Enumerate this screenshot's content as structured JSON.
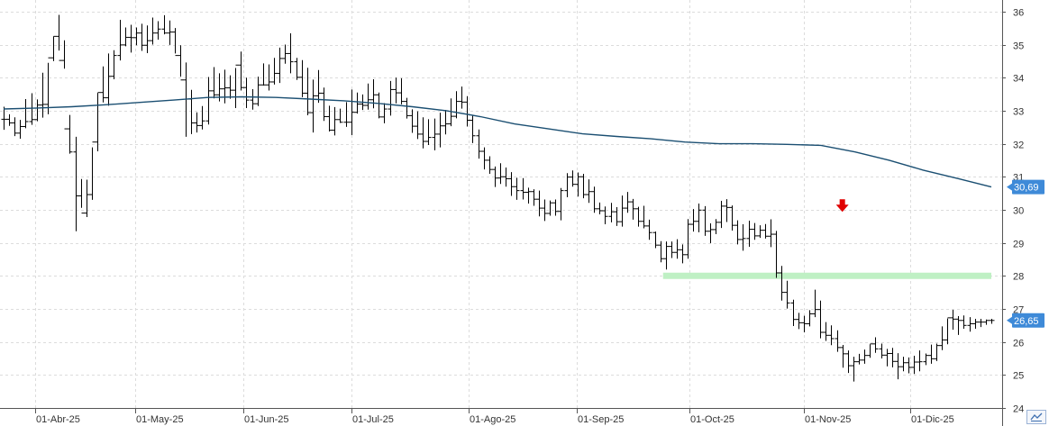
{
  "chart_data": {
    "type": "ohlc",
    "yaxis": {
      "ticks": [
        "24",
        "25",
        "26",
        "27",
        "28",
        "29",
        "30",
        "31",
        "32",
        "33",
        "34",
        "35",
        "36"
      ],
      "range": [
        24,
        36.35
      ],
      "side": "right"
    },
    "xaxis": {
      "labels": [
        "01-Abr-25",
        "01-May-25",
        "01-Jun-25",
        "01-Jul-25",
        "01-Ago-25",
        "01-Sep-25",
        "01-Oct-25",
        "01-Nov-25",
        "01-Dic-25"
      ]
    },
    "grid": true,
    "price_badge": {
      "value": "26,65",
      "level": 26.65,
      "color": "#3e8ad8"
    },
    "ma_badge": {
      "value": "30,69",
      "level": 30.69,
      "color": "#3e8ad8"
    },
    "ma_series": {
      "color": "#1b4f72",
      "values": [
        33.05,
        33.08,
        33.12,
        33.18,
        33.25,
        33.32,
        33.4,
        33.42,
        33.4,
        33.35,
        33.3,
        33.22,
        33.12,
        33.0,
        32.82,
        32.6,
        32.45,
        32.3,
        32.22,
        32.15,
        32.05,
        32.0,
        32.0,
        31.98,
        31.95,
        31.75,
        31.5,
        31.2,
        30.95,
        30.69
      ]
    },
    "support_line": {
      "level": 28.0,
      "color": "#bff0c4",
      "from_bar": 120,
      "to_bar": 179
    },
    "signal_arrow": {
      "direction": "down",
      "color": "#e00000",
      "level": 30.1,
      "bar": 152
    },
    "bar_count": 180,
    "ohlc": {
      "open": [
        32.74,
        32.74,
        32.63,
        32.32,
        32.52,
        32.67,
        32.73,
        33.17,
        33.19,
        34.6,
        35.25,
        34.52,
        32.45,
        31.75,
        30.42,
        29.9,
        30.46,
        32.05,
        33.55,
        33.39,
        34.04,
        34.67,
        34.99,
        35.22,
        35.21,
        35.35,
        34.98,
        35.12,
        35.35,
        35.47,
        35.35,
        35.38,
        34.67,
        33.93,
        33.35,
        32.63,
        32.55,
        32.69,
        33.6,
        33.48,
        33.66,
        33.69,
        33.62,
        34.38,
        33.7,
        33.32,
        33.21,
        33.78,
        33.78,
        33.87,
        34.13,
        34.58,
        34.73,
        34.48,
        34.01,
        33.53,
        32.94,
        33.45,
        33.53,
        32.82,
        32.41,
        32.73,
        32.65,
        32.65,
        32.95,
        33.2,
        33.16,
        33.33,
        33.48,
        32.81,
        33.05,
        33.64,
        33.54,
        33.28,
        32.85,
        32.53,
        32.29,
        32.07,
        32.19,
        32.29,
        32.54,
        32.6,
        32.83,
        33.28,
        33.26,
        32.71,
        32.24,
        31.77,
        31.5,
        31.22,
        30.96,
        31.0,
        30.94,
        30.7,
        30.58,
        30.53,
        30.55,
        30.32,
        30.05,
        29.89,
        30.21,
        29.95,
        30.58,
        30.99,
        30.77,
        31.0,
        30.46,
        30.55,
        30.03,
        29.97,
        29.8,
        29.94,
        29.64,
        30.05,
        30.24,
        30.03,
        29.65,
        29.51,
        29.31,
        28.93,
        28.52,
        28.89,
        28.71,
        28.79,
        28.64,
        29.56,
        29.65,
        29.99,
        29.35,
        29.4,
        29.62,
        30.11,
        30.07,
        29.53,
        29.1,
        29.13,
        29.41,
        29.21,
        29.38,
        29.2,
        29.26,
        28.09,
        27.5,
        27.18,
        26.68,
        26.58,
        26.55,
        26.85,
        26.98,
        26.29,
        26.2,
        26.1,
        25.83,
        25.64,
        25.28,
        25.4,
        25.45,
        25.59,
        25.94,
        25.79,
        25.6,
        25.65,
        25.41,
        25.25,
        25.37,
        25.23,
        25.39,
        25.4,
        25.59,
        25.49,
        25.89,
        26.06,
        26.73,
        26.69,
        26.65,
        26.5,
        26.55,
        26.6,
        26.6,
        26.65
      ],
      "high": [
        33.12,
        32.89,
        32.8,
        32.72,
        33.35,
        33.53,
        33.34,
        34.15,
        34.45,
        35.25,
        35.9,
        35.13,
        32.87,
        32.21,
        30.93,
        30.91,
        31.89,
        33.54,
        34.34,
        34.73,
        34.83,
        35.75,
        35.52,
        35.6,
        35.52,
        35.63,
        35.58,
        35.82,
        35.71,
        35.89,
        35.73,
        35.5,
        34.98,
        34.46,
        33.63,
        32.95,
        33.14,
        34.02,
        34.32,
        34.13,
        34.24,
        34.07,
        34.29,
        34.79,
        34.0,
        33.65,
        34.03,
        34.43,
        34.4,
        34.6,
        34.91,
        35.0,
        35.34,
        34.6,
        34.53,
        34.3,
        33.94,
        34.23,
        33.7,
        33.15,
        33.11,
        33.06,
        33.26,
        33.64,
        33.55,
        33.49,
        33.82,
        33.95,
        33.55,
        33.23,
        33.9,
        34.0,
        33.98,
        33.39,
        33.04,
        32.98,
        32.8,
        32.74,
        32.76,
        32.94,
        33.02,
        33.37,
        33.59,
        33.73,
        33.44,
        32.85,
        32.43,
        31.89,
        31.62,
        31.31,
        31.41,
        31.28,
        31.14,
        30.97,
        30.96,
        30.67,
        30.62,
        30.58,
        30.31,
        30.28,
        30.31,
        30.66,
        31.11,
        31.19,
        31.13,
        31.09,
        30.92,
        30.7,
        30.22,
        30.1,
        30.21,
        30.08,
        30.43,
        30.54,
        30.33,
        30.09,
        30.12,
        29.7,
        29.34,
        29.05,
        29.04,
        29.04,
        29.11,
        28.95,
        29.72,
        30.02,
        30.19,
        30.11,
        29.59,
        29.72,
        30.27,
        30.32,
        30.13,
        29.68,
        29.56,
        29.67,
        29.6,
        29.53,
        29.57,
        29.71,
        29.36,
        28.3,
        27.85,
        27.28,
        26.88,
        26.79,
        26.96,
        27.58,
        27.25,
        26.6,
        26.5,
        26.35,
        25.91,
        25.74,
        25.55,
        25.64,
        25.77,
        25.93,
        26.14,
        25.95,
        25.79,
        25.82,
        25.66,
        25.55,
        25.53,
        25.58,
        25.74,
        25.65,
        25.92,
        25.95,
        26.47,
        26.71,
        26.97,
        26.78,
        26.8,
        26.75,
        26.7,
        26.7,
        26.68,
        26.7
      ],
      "low": [
        32.42,
        32.54,
        32.23,
        32.15,
        32.47,
        32.57,
        32.68,
        32.79,
        32.89,
        34.5,
        34.82,
        34.27,
        31.7,
        29.35,
        30.06,
        29.78,
        30.3,
        31.77,
        33.25,
        33.15,
        33.95,
        34.52,
        34.95,
        34.76,
        34.98,
        34.81,
        34.74,
        35.0,
        35.15,
        35.31,
        34.99,
        34.73,
        34.03,
        32.21,
        32.29,
        32.34,
        32.43,
        32.58,
        33.37,
        33.28,
        33.22,
        33.36,
        33.08,
        33.61,
        33.08,
        33.03,
        33.14,
        33.76,
        33.61,
        33.79,
        33.84,
        34.42,
        34.13,
        33.93,
        33.41,
        32.86,
        32.34,
        33.24,
        32.69,
        32.37,
        32.25,
        32.63,
        32.51,
        32.26,
        32.91,
        33.02,
        33.03,
        33.07,
        32.77,
        32.62,
        32.85,
        33.22,
        33.19,
        32.76,
        32.33,
        32.14,
        31.86,
        31.96,
        31.8,
        31.89,
        32.28,
        32.53,
        32.77,
        33.06,
        32.52,
        32.02,
        31.55,
        31.22,
        31.09,
        30.69,
        30.78,
        30.7,
        30.42,
        30.3,
        30.31,
        30.19,
        30.12,
        29.8,
        29.66,
        29.82,
        29.82,
        29.68,
        30.38,
        30.7,
        30.4,
        30.35,
        30.21,
        29.91,
        29.86,
        29.56,
        29.62,
        29.51,
        29.49,
        29.91,
        29.7,
        29.49,
        29.44,
        29.09,
        28.84,
        28.41,
        28.19,
        28.54,
        28.52,
        28.38,
        28.52,
        29.34,
        29.32,
        29.21,
        28.99,
        29.26,
        29.45,
        29.63,
        29.37,
        28.95,
        28.76,
        28.88,
        29.09,
        29.15,
        29.13,
        28.87,
        27.94,
        27.25,
        27.01,
        26.48,
        26.39,
        26.29,
        26.47,
        26.75,
        26.11,
        26.03,
        25.9,
        25.7,
        25.22,
        25.06,
        24.8,
        25.32,
        25.34,
        25.52,
        25.67,
        25.5,
        25.26,
        25.23,
        24.87,
        25.11,
        25.05,
        25.03,
        25.11,
        25.3,
        25.34,
        25.42,
        25.75,
        25.93,
        26.37,
        26.21,
        26.4,
        26.31,
        26.4,
        26.45,
        26.52,
        26.55
      ],
      "close": [
        32.74,
        32.63,
        32.32,
        32.52,
        32.67,
        32.73,
        33.17,
        33.19,
        34.6,
        35.25,
        34.52,
        32.45,
        31.75,
        30.42,
        29.9,
        30.46,
        32.05,
        33.55,
        33.39,
        34.04,
        34.67,
        34.99,
        35.22,
        35.21,
        35.35,
        34.98,
        35.12,
        35.35,
        35.47,
        35.35,
        35.38,
        34.67,
        33.93,
        33.35,
        32.63,
        32.55,
        32.69,
        33.6,
        33.48,
        33.66,
        33.69,
        33.62,
        34.38,
        33.7,
        33.32,
        33.21,
        33.78,
        33.78,
        33.87,
        34.13,
        34.58,
        34.73,
        34.48,
        34.01,
        33.53,
        32.94,
        33.45,
        33.53,
        32.82,
        32.41,
        32.73,
        32.65,
        32.65,
        32.95,
        33.2,
        33.16,
        33.33,
        33.48,
        32.81,
        33.05,
        33.64,
        33.54,
        33.28,
        32.85,
        32.53,
        32.29,
        32.07,
        32.19,
        32.29,
        32.54,
        32.6,
        32.83,
        33.28,
        33.26,
        32.71,
        32.24,
        31.77,
        31.5,
        31.22,
        30.96,
        31.0,
        30.94,
        30.7,
        30.58,
        30.53,
        30.55,
        30.32,
        30.05,
        29.89,
        30.21,
        29.95,
        30.58,
        30.99,
        30.77,
        31.0,
        30.46,
        30.55,
        30.03,
        29.97,
        29.8,
        29.94,
        29.64,
        30.05,
        30.24,
        30.03,
        29.65,
        29.51,
        29.31,
        28.93,
        28.52,
        28.89,
        28.71,
        28.79,
        28.64,
        29.56,
        29.65,
        29.99,
        29.35,
        29.4,
        29.62,
        30.11,
        30.07,
        29.53,
        29.1,
        29.13,
        29.41,
        29.21,
        29.38,
        29.2,
        29.26,
        28.09,
        27.5,
        27.18,
        26.68,
        26.58,
        26.55,
        26.85,
        26.98,
        26.29,
        26.2,
        26.1,
        25.83,
        25.64,
        25.28,
        25.4,
        25.45,
        25.59,
        25.94,
        25.79,
        25.6,
        25.65,
        25.41,
        25.25,
        25.37,
        25.23,
        25.39,
        25.4,
        25.59,
        25.49,
        25.89,
        26.06,
        26.73,
        26.69,
        26.65,
        26.5,
        26.55,
        26.6,
        26.6,
        26.65,
        26.65
      ]
    }
  }
}
